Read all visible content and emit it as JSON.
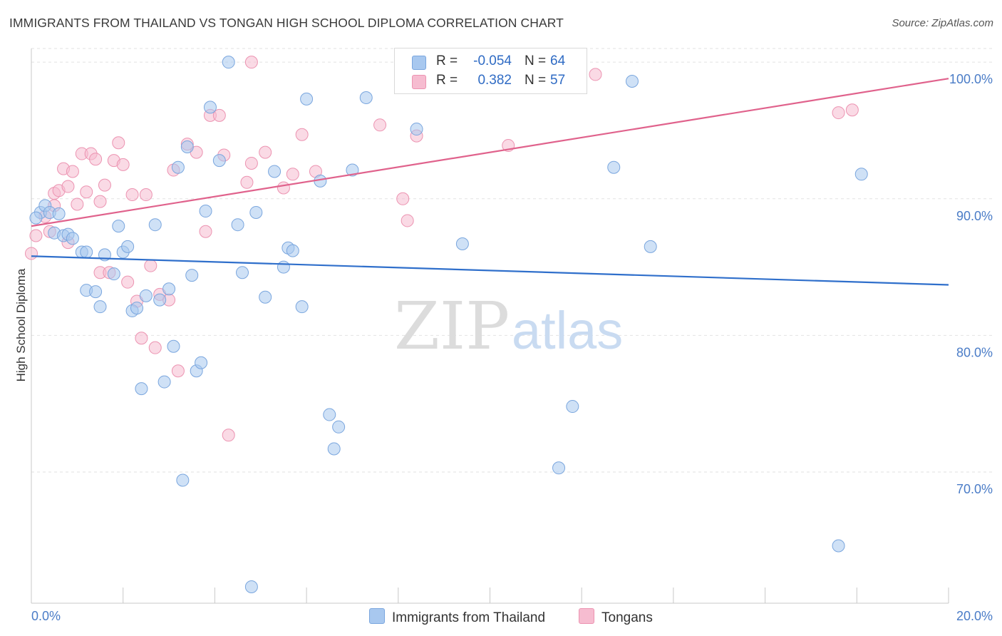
{
  "title": "IMMIGRANTS FROM THAILAND VS TONGAN HIGH SCHOOL DIPLOMA CORRELATION CHART",
  "source": "Source: ZipAtlas.com",
  "watermark": {
    "zip": "ZIP",
    "atlas": "atlas"
  },
  "legend": {
    "r_label": "R =",
    "n_label": "N =",
    "series": [
      {
        "name": "Immigrants from Thailand",
        "r": "-0.054",
        "n": "64",
        "color": "#a8c8ef",
        "stroke": "#7aa6de"
      },
      {
        "name": "Tongans",
        "r": "0.382",
        "n": "57",
        "color": "#f6bcd0",
        "stroke": "#ec93b1"
      }
    ]
  },
  "colors": {
    "blue_line": "#2f6fcb",
    "pink_line": "#e0628c",
    "tick_text": "#4a7cc7",
    "grid": "#e2e2e2"
  },
  "chart_data": {
    "type": "scatter",
    "title": "IMMIGRANTS FROM THAILAND VS TONGAN HIGH SCHOOL DIPLOMA CORRELATION CHART",
    "xlabel": "",
    "ylabel": "High School Diploma",
    "xlim": [
      0,
      20
    ],
    "ylim": [
      60.4,
      101.0
    ],
    "x_tick_labels": [
      "0.0%",
      "20.0%"
    ],
    "y_ticks": [
      70,
      80,
      90,
      100
    ],
    "y_tick_labels": [
      "70.0%",
      "80.0%",
      "90.0%",
      "100.0%"
    ],
    "series": [
      {
        "name": "Immigrants from Thailand",
        "trend": {
          "x0": 0,
          "y0": 85.8,
          "x1": 20,
          "y1": 83.7
        },
        "points": [
          [
            0.2,
            89.0
          ],
          [
            0.3,
            89.5
          ],
          [
            0.4,
            89.0
          ],
          [
            0.5,
            87.5
          ],
          [
            0.7,
            87.3
          ],
          [
            0.8,
            87.4
          ],
          [
            0.9,
            87.1
          ],
          [
            1.1,
            86.1
          ],
          [
            1.2,
            86.1
          ],
          [
            1.2,
            83.3
          ],
          [
            1.4,
            83.2
          ],
          [
            1.5,
            82.1
          ],
          [
            1.6,
            85.9
          ],
          [
            1.8,
            84.5
          ],
          [
            1.9,
            88.0
          ],
          [
            2.0,
            86.1
          ],
          [
            2.1,
            86.5
          ],
          [
            2.2,
            81.8
          ],
          [
            2.3,
            82.0
          ],
          [
            2.4,
            76.1
          ],
          [
            2.5,
            82.9
          ],
          [
            2.7,
            88.1
          ],
          [
            2.8,
            82.6
          ],
          [
            2.9,
            76.6
          ],
          [
            3.0,
            83.4
          ],
          [
            3.1,
            79.2
          ],
          [
            3.2,
            92.3
          ],
          [
            3.4,
            93.8
          ],
          [
            3.5,
            84.4
          ],
          [
            3.6,
            77.4
          ],
          [
            3.7,
            78.0
          ],
          [
            3.8,
            89.1
          ],
          [
            3.9,
            96.7
          ],
          [
            4.1,
            92.8
          ],
          [
            4.3,
            100.0
          ],
          [
            4.5,
            88.1
          ],
          [
            4.6,
            84.6
          ],
          [
            4.8,
            61.6
          ],
          [
            5.1,
            82.8
          ],
          [
            5.3,
            92.0
          ],
          [
            5.5,
            85.0
          ],
          [
            5.6,
            86.4
          ],
          [
            5.7,
            86.2
          ],
          [
            5.9,
            82.1
          ],
          [
            6.0,
            97.3
          ],
          [
            6.3,
            91.3
          ],
          [
            6.5,
            74.2
          ],
          [
            6.7,
            73.3
          ],
          [
            6.6,
            71.7
          ],
          [
            7.0,
            92.1
          ],
          [
            7.3,
            97.4
          ],
          [
            8.4,
            95.1
          ],
          [
            9.4,
            86.7
          ],
          [
            11.5,
            70.3
          ],
          [
            11.8,
            74.8
          ],
          [
            12.7,
            92.3
          ],
          [
            13.1,
            98.6
          ],
          [
            13.5,
            86.5
          ],
          [
            3.3,
            69.4
          ],
          [
            18.1,
            91.8
          ],
          [
            17.6,
            64.6
          ],
          [
            0.1,
            88.6
          ],
          [
            0.6,
            88.9
          ],
          [
            4.9,
            89.0
          ]
        ]
      },
      {
        "name": "Tongans",
        "trend": {
          "x0": 0,
          "y0": 88.0,
          "x1": 20,
          "y1": 98.8
        },
        "points": [
          [
            0.0,
            86.0
          ],
          [
            0.1,
            87.3
          ],
          [
            0.3,
            88.7
          ],
          [
            0.4,
            87.6
          ],
          [
            0.5,
            89.5
          ],
          [
            0.5,
            90.4
          ],
          [
            0.6,
            90.6
          ],
          [
            0.7,
            92.2
          ],
          [
            0.8,
            86.8
          ],
          [
            0.9,
            92.0
          ],
          [
            1.0,
            89.6
          ],
          [
            1.1,
            93.3
          ],
          [
            1.2,
            90.5
          ],
          [
            1.3,
            93.3
          ],
          [
            1.4,
            92.9
          ],
          [
            1.5,
            84.6
          ],
          [
            1.5,
            89.8
          ],
          [
            1.6,
            91.0
          ],
          [
            1.7,
            84.6
          ],
          [
            1.8,
            92.8
          ],
          [
            1.9,
            94.1
          ],
          [
            2.0,
            92.5
          ],
          [
            2.1,
            83.9
          ],
          [
            2.2,
            90.3
          ],
          [
            2.3,
            82.5
          ],
          [
            2.4,
            79.8
          ],
          [
            2.5,
            90.3
          ],
          [
            2.6,
            85.1
          ],
          [
            2.7,
            79.1
          ],
          [
            2.8,
            83.0
          ],
          [
            3.0,
            82.6
          ],
          [
            3.1,
            92.1
          ],
          [
            3.2,
            77.4
          ],
          [
            3.4,
            94.0
          ],
          [
            3.6,
            93.4
          ],
          [
            3.8,
            87.6
          ],
          [
            3.9,
            96.1
          ],
          [
            4.1,
            96.1
          ],
          [
            4.2,
            93.2
          ],
          [
            4.3,
            72.7
          ],
          [
            4.7,
            91.2
          ],
          [
            4.8,
            92.6
          ],
          [
            5.1,
            93.4
          ],
          [
            5.5,
            90.8
          ],
          [
            5.7,
            91.8
          ],
          [
            5.9,
            94.7
          ],
          [
            6.2,
            92.0
          ],
          [
            7.6,
            95.4
          ],
          [
            8.1,
            90.0
          ],
          [
            8.2,
            88.4
          ],
          [
            8.4,
            94.6
          ],
          [
            10.4,
            93.9
          ],
          [
            12.3,
            99.1
          ],
          [
            17.6,
            96.3
          ],
          [
            17.9,
            96.5
          ],
          [
            4.8,
            100.0
          ],
          [
            0.8,
            90.9
          ]
        ]
      }
    ]
  }
}
